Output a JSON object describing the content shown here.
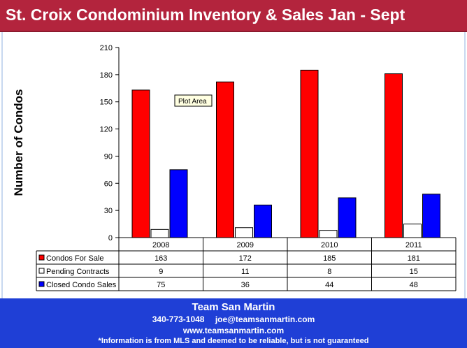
{
  "title": "St. Croix Condominium Inventory & Sales Jan - Sept",
  "tooltip": "Plot Area",
  "colors": {
    "title_bg": "#b3243d",
    "footer_bg": "#1f3fd6",
    "condos_for_sale": "#ff0000",
    "pending_contracts": "#ffffff",
    "closed_condo_sales": "#0000ff"
  },
  "chart_data": {
    "type": "bar",
    "ylabel": "Number of Condos",
    "ylim": [
      0,
      210
    ],
    "yticks": [
      0,
      30,
      60,
      90,
      120,
      150,
      180,
      210
    ],
    "categories": [
      "2008",
      "2009",
      "2010",
      "2011"
    ],
    "series": [
      {
        "name": "Condos For Sale",
        "values": [
          163,
          172,
          185,
          181
        ]
      },
      {
        "name": "Pending Contracts",
        "values": [
          9,
          11,
          8,
          15
        ]
      },
      {
        "name": "Closed Condo Sales",
        "values": [
          75,
          36,
          44,
          48
        ]
      }
    ],
    "legend": "data-table-left",
    "grid": false
  },
  "footer": {
    "name": "Team San Martin",
    "phone": "340-773-1048",
    "email": "joe@teamsanmartin.com",
    "website": "www.teamsanmartin.com",
    "disclaimer": "*Information is from MLS and deemed to be reliable, but is not guaranteed"
  }
}
